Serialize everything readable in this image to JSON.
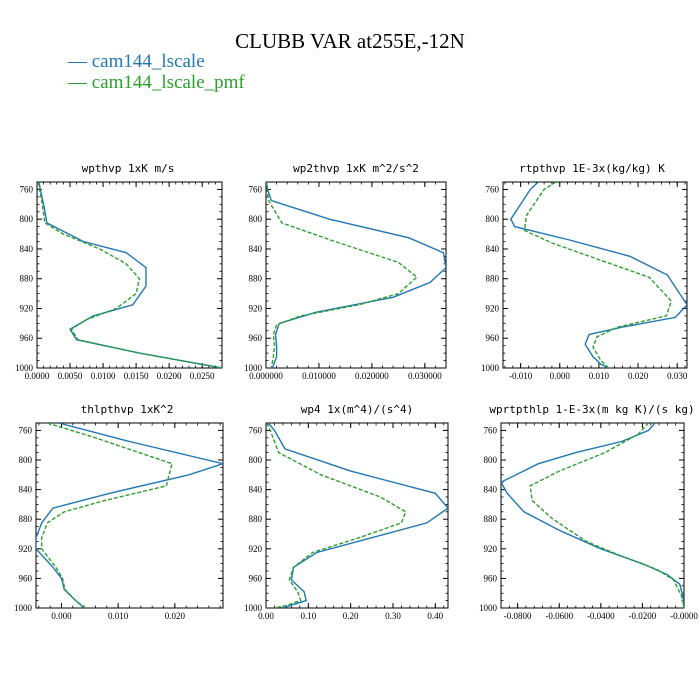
{
  "figure": {
    "title": "CLUBB VAR at255E,-12N",
    "colors": {
      "s1": "#1f77b4",
      "s2": "#2ca02c"
    },
    "legend": [
      {
        "name": "cam144_lscale",
        "color": "#1f77b4",
        "dash": "solid",
        "prefix": "—"
      },
      {
        "name": "cam144_lscale_pmf",
        "color": "#2ca02c",
        "dash": "dashed",
        "prefix": "—"
      }
    ]
  },
  "chart_data": [
    {
      "type": "line",
      "title": "wpthvp  1xK m/s",
      "xlim": [
        0,
        0.028
      ],
      "ylim": [
        750,
        1000
      ],
      "xticks": [
        {
          "v": 0,
          "label": "0.0000"
        },
        {
          "v": 0.005,
          "label": "0.0050"
        },
        {
          "v": 0.01,
          "label": "0.0100"
        },
        {
          "v": 0.015,
          "label": "0.0150"
        },
        {
          "v": 0.02,
          "label": "0.0200"
        },
        {
          "v": 0.025,
          "label": "0.0250"
        }
      ],
      "yticks": [
        760,
        800,
        840,
        880,
        920,
        960,
        1000
      ],
      "series": [
        {
          "name": "cam144_lscale",
          "x": [
            0.0003,
            0.0005,
            0.001,
            0.0015,
            0.007,
            0.0135,
            0.0165,
            0.0165,
            0.0145,
            0.0085,
            0.005,
            0.006,
            0.0155,
            0.028
          ],
          "y": [
            750,
            760,
            780,
            805,
            830,
            845,
            865,
            890,
            915,
            930,
            948,
            962,
            980,
            1000
          ]
        },
        {
          "name": "cam144_lscale_pmf",
          "x": [
            0.0002,
            0.0004,
            0.0008,
            0.0012,
            0.004,
            0.0095,
            0.0135,
            0.0155,
            0.015,
            0.012,
            0.0075,
            0.0052,
            0.0062,
            0.0155,
            0.028
          ],
          "y": [
            750,
            760,
            780,
            805,
            820,
            840,
            860,
            880,
            900,
            920,
            935,
            948,
            962,
            980,
            1000
          ]
        }
      ]
    },
    {
      "type": "line",
      "title": "wp2thvp  1xK m^2/s^2",
      "xlim": [
        0,
        0.034
      ],
      "ylim": [
        750,
        1000
      ],
      "xticks": [
        {
          "v": 0,
          "label": "0.000000"
        },
        {
          "v": 0.01,
          "label": "0.010000"
        },
        {
          "v": 0.02,
          "label": "0.020000"
        },
        {
          "v": 0.03,
          "label": "0.030000"
        }
      ],
      "yticks": [
        760,
        800,
        840,
        880,
        920,
        960,
        1000
      ],
      "series": [
        {
          "name": "cam144_lscale",
          "x": [
            0.0001,
            0.0003,
            0.001,
            0.012,
            0.027,
            0.0335,
            0.034,
            0.031,
            0.024,
            0.0095,
            0.0025,
            0.0018,
            0.002,
            0.002,
            0.0012
          ],
          "y": [
            750,
            760,
            775,
            800,
            825,
            845,
            865,
            885,
            905,
            925,
            940,
            955,
            970,
            985,
            1000
          ]
        },
        {
          "name": "cam144_lscale_pmf",
          "x": [
            0.0001,
            0.0002,
            0.0005,
            0.003,
            0.013,
            0.025,
            0.0285,
            0.025,
            0.0175,
            0.0065,
            0.002,
            0.0014,
            0.0016,
            0.0014,
            0.001
          ],
          "y": [
            750,
            760,
            775,
            805,
            830,
            858,
            878,
            900,
            915,
            930,
            942,
            955,
            970,
            985,
            1000
          ]
        }
      ]
    },
    {
      "type": "line",
      "title": "rtpthvp  1E-3x(kg/kg) K",
      "xlim": [
        -0.0145,
        0.0325
      ],
      "ylim": [
        750,
        1000
      ],
      "xticks": [
        {
          "v": -0.01,
          "label": "-0.010"
        },
        {
          "v": 0,
          "label": "0.000"
        },
        {
          "v": 0.01,
          "label": "0.010"
        },
        {
          "v": 0.02,
          "label": "0.020"
        },
        {
          "v": 0.03,
          "label": "0.030"
        }
      ],
      "yticks": [
        760,
        800,
        840,
        880,
        920,
        960,
        1000
      ],
      "series": [
        {
          "name": "cam144_lscale",
          "x": [
            -0.0055,
            -0.0075,
            -0.0125,
            -0.0115,
            0.0025,
            0.018,
            0.0275,
            0.0325,
            0.0295,
            0.016,
            0.0075,
            0.0065,
            0.0085,
            0.0105,
            0.0125
          ],
          "y": [
            750,
            760,
            800,
            810,
            828,
            850,
            875,
            915,
            932,
            945,
            955,
            968,
            985,
            995,
            1000
          ]
        },
        {
          "name": "cam144_lscale_pmf",
          "x": [
            -0.001,
            -0.004,
            -0.0085,
            -0.009,
            -0.002,
            0.012,
            0.0228,
            0.0285,
            0.0272,
            0.0148,
            0.0095,
            0.0085,
            0.0105,
            0.0125
          ],
          "y": [
            750,
            760,
            795,
            815,
            832,
            858,
            878,
            910,
            930,
            945,
            958,
            972,
            990,
            1000
          ]
        }
      ]
    },
    {
      "type": "line",
      "title": "thlpthvp  1xK^2",
      "xlim": [
        -0.0045,
        0.0285
      ],
      "ylim": [
        750,
        1000
      ],
      "xticks": [
        {
          "v": 0,
          "label": "0.000"
        },
        {
          "v": 0.01,
          "label": "0.010"
        },
        {
          "v": 0.02,
          "label": "0.020"
        }
      ],
      "yticks": [
        760,
        800,
        840,
        880,
        920,
        960,
        1000
      ],
      "series": [
        {
          "name": "cam144_lscale",
          "x": [
            -0.0005,
            0.012,
            0.0285,
            0.0225,
            0.0085,
            -0.0015,
            -0.0035,
            -0.0045,
            -0.0045,
            -0.0015,
            0.0,
            0.0005,
            0.0025,
            0.004
          ],
          "y": [
            750,
            775,
            805,
            820,
            845,
            865,
            885,
            905,
            920,
            945,
            960,
            975,
            990,
            1000
          ]
        },
        {
          "name": "cam144_lscale_pmf",
          "x": [
            -0.0025,
            0.006,
            0.0195,
            0.0185,
            0.0075,
            0.0005,
            -0.0025,
            -0.0035,
            -0.0035,
            -0.001,
            0.0002,
            0.0006,
            0.0025,
            0.0042
          ],
          "y": [
            750,
            770,
            805,
            835,
            855,
            870,
            885,
            905,
            920,
            945,
            960,
            975,
            990,
            1000
          ]
        }
      ]
    },
    {
      "type": "line",
      "title": "wp4  1x(m^4)/(s^4)",
      "xlim": [
        0,
        0.43
      ],
      "ylim": [
        750,
        1000
      ],
      "xticks": [
        {
          "v": 0,
          "label": "0.00"
        },
        {
          "v": 0.1,
          "label": "0.10"
        },
        {
          "v": 0.2,
          "label": "0.20"
        },
        {
          "v": 0.3,
          "label": "0.30"
        },
        {
          "v": 0.4,
          "label": "0.40"
        }
      ],
      "yticks": [
        760,
        800,
        840,
        880,
        920,
        960,
        1000
      ],
      "series": [
        {
          "name": "cam144_lscale",
          "x": [
            0.005,
            0.02,
            0.045,
            0.2,
            0.4,
            0.43,
            0.38,
            0.25,
            0.12,
            0.065,
            0.06,
            0.09,
            0.095,
            0.055,
            0.04
          ],
          "y": [
            750,
            760,
            785,
            815,
            845,
            865,
            885,
            905,
            925,
            945,
            962,
            978,
            990,
            997,
            1000
          ]
        },
        {
          "name": "cam144_lscale_pmf",
          "x": [
            0.002,
            0.01,
            0.03,
            0.13,
            0.27,
            0.33,
            0.32,
            0.22,
            0.11,
            0.065,
            0.055,
            0.075,
            0.082,
            0.045,
            0.02
          ],
          "y": [
            750,
            760,
            790,
            820,
            850,
            870,
            885,
            905,
            925,
            945,
            962,
            978,
            990,
            997,
            1000
          ]
        }
      ]
    },
    {
      "type": "line",
      "title": "wprtpthlp  1-E-3x(m kg K)/(s kg)",
      "xlim": [
        -0.088,
        0.0
      ],
      "ylim": [
        750,
        1000
      ],
      "xticks": [
        {
          "v": -0.08,
          "label": "-0.0800"
        },
        {
          "v": -0.06,
          "label": "-0.0600"
        },
        {
          "v": -0.04,
          "label": "-0.0400"
        },
        {
          "v": -0.02,
          "label": "-0.0200"
        },
        {
          "v": 0,
          "label": "-0.0000"
        }
      ],
      "yticks": [
        760,
        800,
        840,
        880,
        920,
        960,
        1000
      ],
      "series": [
        {
          "name": "cam144_lscale",
          "x": [
            -0.014,
            -0.017,
            -0.03,
            -0.052,
            -0.07,
            -0.088,
            -0.085,
            -0.077,
            -0.06,
            -0.04,
            -0.02,
            -0.008,
            -0.002,
            -0.0005,
            0.0
          ],
          "y": [
            750,
            760,
            775,
            790,
            805,
            830,
            845,
            870,
            895,
            920,
            940,
            955,
            968,
            985,
            1000
          ]
        },
        {
          "name": "cam144_lscale_pmf",
          "x": [
            -0.017,
            -0.022,
            -0.038,
            -0.06,
            -0.074,
            -0.073,
            -0.063,
            -0.047,
            -0.03,
            -0.013,
            -0.005,
            -0.001,
            0.0
          ],
          "y": [
            750,
            765,
            790,
            815,
            835,
            855,
            880,
            910,
            930,
            948,
            962,
            985,
            1000
          ]
        }
      ]
    }
  ]
}
